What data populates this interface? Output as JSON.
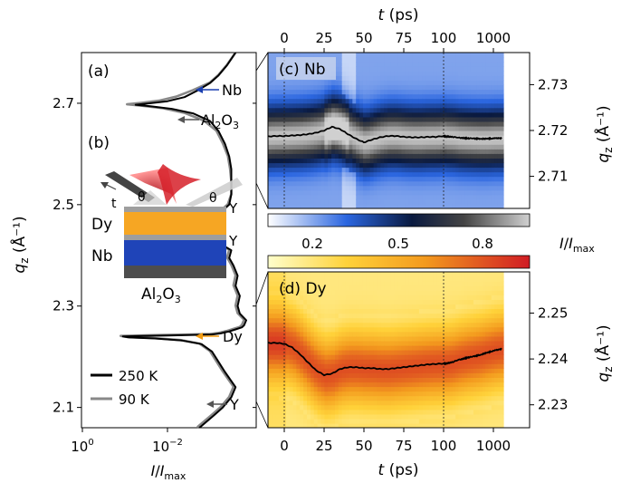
{
  "chart_data": [
    {
      "panel": "(a)",
      "type": "line",
      "xlabel": "I/I_max",
      "xscale": "log",
      "xticks": [
        "10⁰",
        "10⁻²"
      ],
      "ylabel": "q_z (Å⁻¹)",
      "ylim": [
        2.06,
        2.8
      ],
      "yticks": [
        "2.1",
        "2.3",
        "2.5",
        "2.7"
      ],
      "series": [
        {
          "name": "250 K",
          "color": "#000000",
          "x": [
            -3.6,
            -3.4,
            -3.2,
            -3.0,
            -2.7,
            -2.4,
            -2.0,
            -1.6,
            -1.25,
            -1.6,
            -2.1,
            -2.6,
            -3.0,
            -3.2,
            -3.35,
            -3.45,
            -3.5,
            -3.5,
            -3.5,
            -3.45,
            -3.25,
            -2.95,
            -3.1,
            -2.95,
            -3.2,
            -3.5,
            -3.45,
            -3.55,
            -3.65,
            -3.6,
            -3.7,
            -3.65,
            -3.7,
            -3.85,
            -3.8,
            -3.75,
            -3.6,
            -3.45,
            -3.25,
            -3.05,
            -2.6,
            -2.0,
            -1.4,
            -0.95,
            -1.1,
            -1.7,
            -2.35,
            -2.8,
            -3.05,
            -3.2,
            -3.35,
            -3.6,
            -3.5,
            -3.3,
            -3.1,
            -2.75
          ],
          "y": [
            2.8,
            2.775,
            2.755,
            2.74,
            2.725,
            2.712,
            2.704,
            2.7,
            2.697,
            2.694,
            2.689,
            2.68,
            2.665,
            2.645,
            2.62,
            2.595,
            2.57,
            2.545,
            2.52,
            2.5,
            2.485,
            2.47,
            2.455,
            2.44,
            2.425,
            2.41,
            2.395,
            2.38,
            2.36,
            2.34,
            2.32,
            2.3,
            2.285,
            2.272,
            2.262,
            2.258,
            2.254,
            2.25,
            2.246,
            2.244,
            2.243,
            2.242,
            2.241,
            2.24,
            2.238,
            2.236,
            2.232,
            2.225,
            2.21,
            2.19,
            2.17,
            2.14,
            2.12,
            2.1,
            2.085,
            2.06
          ]
        },
        {
          "name": "90 K",
          "color": "#888888",
          "x": [
            -3.6,
            -3.4,
            -3.2,
            -3.0,
            -2.6,
            -2.2,
            -1.8,
            -1.4,
            -1.05,
            -1.4,
            -1.9,
            -2.4,
            -2.85,
            -3.15,
            -3.3,
            -3.42,
            -3.47,
            -3.5,
            -3.5,
            -3.42,
            -3.22,
            -2.92,
            -3.05,
            -2.9,
            -3.15,
            -3.45,
            -3.4,
            -3.5,
            -3.6,
            -3.55,
            -3.65,
            -3.6,
            -3.65,
            -3.8,
            -3.75,
            -3.7,
            -3.55,
            -3.4,
            -3.2,
            -3.0,
            -2.55,
            -1.95,
            -1.35,
            -0.9,
            -1.05,
            -1.65,
            -2.3,
            -2.75,
            -3.0,
            -3.15,
            -3.3,
            -3.55,
            -3.45,
            -3.25,
            -3.05,
            -2.7
          ],
          "y": [
            2.8,
            2.776,
            2.756,
            2.741,
            2.726,
            2.713,
            2.705,
            2.701,
            2.698,
            2.695,
            2.69,
            2.681,
            2.666,
            2.646,
            2.621,
            2.596,
            2.571,
            2.546,
            2.521,
            2.501,
            2.486,
            2.471,
            2.456,
            2.441,
            2.426,
            2.411,
            2.396,
            2.381,
            2.361,
            2.341,
            2.321,
            2.301,
            2.286,
            2.273,
            2.263,
            2.259,
            2.255,
            2.251,
            2.247,
            2.245,
            2.244,
            2.243,
            2.242,
            2.241,
            2.239,
            2.237,
            2.233,
            2.226,
            2.211,
            2.191,
            2.171,
            2.141,
            2.121,
            2.101,
            2.086,
            2.061
          ]
        }
      ],
      "annotations": [
        {
          "text": "Nb",
          "color": "#1a3fb0"
        },
        {
          "text": "Al₂O₃",
          "color": "#333333"
        },
        {
          "text": "Dy",
          "color": "#f39c12"
        },
        {
          "text": "Y",
          "color": "#333333"
        }
      ]
    },
    {
      "panel": "(b)",
      "type": "schematic",
      "layers": [
        {
          "name": "Y",
          "color": "#9e9e9e"
        },
        {
          "name": "Dy",
          "color": "#f6a623"
        },
        {
          "name": "Y",
          "color": "#9e9e9e"
        },
        {
          "name": "Nb",
          "color": "#1f44b8"
        },
        {
          "name": "Al2O3",
          "color": "#4d4d4d"
        }
      ],
      "symbols": [
        "t",
        "θ",
        "θ"
      ]
    },
    {
      "panel": "(c)",
      "title": "Nb",
      "type": "heatmap",
      "colormap": "blue-black-white",
      "xlabel": "t (ps)",
      "xticks": [
        "0",
        "25",
        "50",
        "75",
        "100",
        "1000"
      ],
      "ylabel": "q_z (Å⁻¹)",
      "ylim": [
        2.703,
        2.737
      ],
      "yticks": [
        "2.71",
        "2.72",
        "2.73"
      ],
      "line": {
        "t": [
          -10,
          -5,
          0,
          5,
          10,
          15,
          20,
          25,
          30,
          35,
          40,
          45,
          50,
          55,
          60,
          65,
          70,
          75,
          80,
          85,
          90,
          95,
          100,
          110,
          150,
          200,
          300,
          500,
          700,
          1000,
          1500
        ],
        "qz": [
          2.7187,
          2.7188,
          2.7188,
          2.7189,
          2.719,
          2.7192,
          2.7195,
          2.72,
          2.7208,
          2.7203,
          2.7192,
          2.7182,
          2.7174,
          2.718,
          2.7185,
          2.7188,
          2.7188,
          2.7186,
          2.7185,
          2.7185,
          2.7186,
          2.7186,
          2.7188,
          2.7187,
          2.7186,
          2.7184,
          2.7183,
          2.7182,
          2.7182,
          2.7183,
          2.7183
        ]
      },
      "colorbar": {
        "label": "I/I_max",
        "ticks": [
          "0.2",
          "0.5",
          "0.8"
        ]
      }
    },
    {
      "panel": "(d)",
      "title": "Dy",
      "type": "heatmap",
      "colormap": "yellow-orange-red",
      "xlabel": "t (ps)",
      "xticks": [
        "0",
        "25",
        "50",
        "75",
        "100",
        "1000"
      ],
      "ylabel": "q_z (Å⁻¹)",
      "ylim": [
        2.225,
        2.259
      ],
      "yticks": [
        "2.23",
        "2.24",
        "2.25"
      ],
      "line": {
        "t": [
          -10,
          -5,
          0,
          5,
          10,
          15,
          20,
          25,
          30,
          35,
          40,
          45,
          50,
          55,
          60,
          65,
          70,
          75,
          80,
          85,
          90,
          95,
          100,
          110,
          150,
          200,
          300,
          500,
          700,
          1000,
          1500
        ],
        "qz": [
          2.2435,
          2.2435,
          2.2433,
          2.2425,
          2.241,
          2.2392,
          2.2375,
          2.2365,
          2.2368,
          2.2378,
          2.2382,
          2.2382,
          2.238,
          2.238,
          2.2378,
          2.2378,
          2.238,
          2.2382,
          2.2384,
          2.2386,
          2.2388,
          2.2389,
          2.239,
          2.239,
          2.2393,
          2.2398,
          2.2403,
          2.2408,
          2.2413,
          2.2418,
          2.2422
        ]
      },
      "colorbar": {
        "label": "I/I_max"
      }
    }
  ],
  "labels": {
    "panel_a": "(a)",
    "panel_b": "(b)",
    "panel_c": "(c) Nb",
    "panel_d": "(d) Dy",
    "top_xlabel_t": "t",
    "top_xlabel_unit": " (ps)",
    "bottom_xlabel_t": "t",
    "bottom_xlabel_unit": " (ps)",
    "ylabel_q": "q",
    "ylabel_sub": "z",
    "ylabel_unit_a": " (Å",
    "ylabel_unit_b": "⁻¹)",
    "xlabel_I": "I",
    "xlabel_slash": "/",
    "xlabel_Imax": "I",
    "xlabel_max": "max",
    "cbar_I": "I",
    "cbar_slash": "/",
    "cbar_Imax": "I",
    "cbar_max": "max",
    "legend_250": "250 K",
    "legend_90": "90 K",
    "xtick_a0": "10",
    "xtick_a0_exp": "0",
    "xtick_a1": "10",
    "xtick_a1_exp": "−2",
    "ann_nb": "Nb",
    "ann_al2o3_a": "Al",
    "ann_al2o3_sub2": "2",
    "ann_al2o3_b": "O",
    "ann_al2o3_sub3": "3",
    "ann_dy": "Dy",
    "ann_y": "Y",
    "b_t": "t",
    "b_theta1": "θ",
    "b_theta2": "θ",
    "b_y1": "Y",
    "b_y2": "Y",
    "b_dy": "Dy",
    "b_nb": "Nb",
    "b_al_a": "Al",
    "b_al_sub2": "2",
    "b_al_b": "O",
    "b_al_sub3": "3"
  }
}
